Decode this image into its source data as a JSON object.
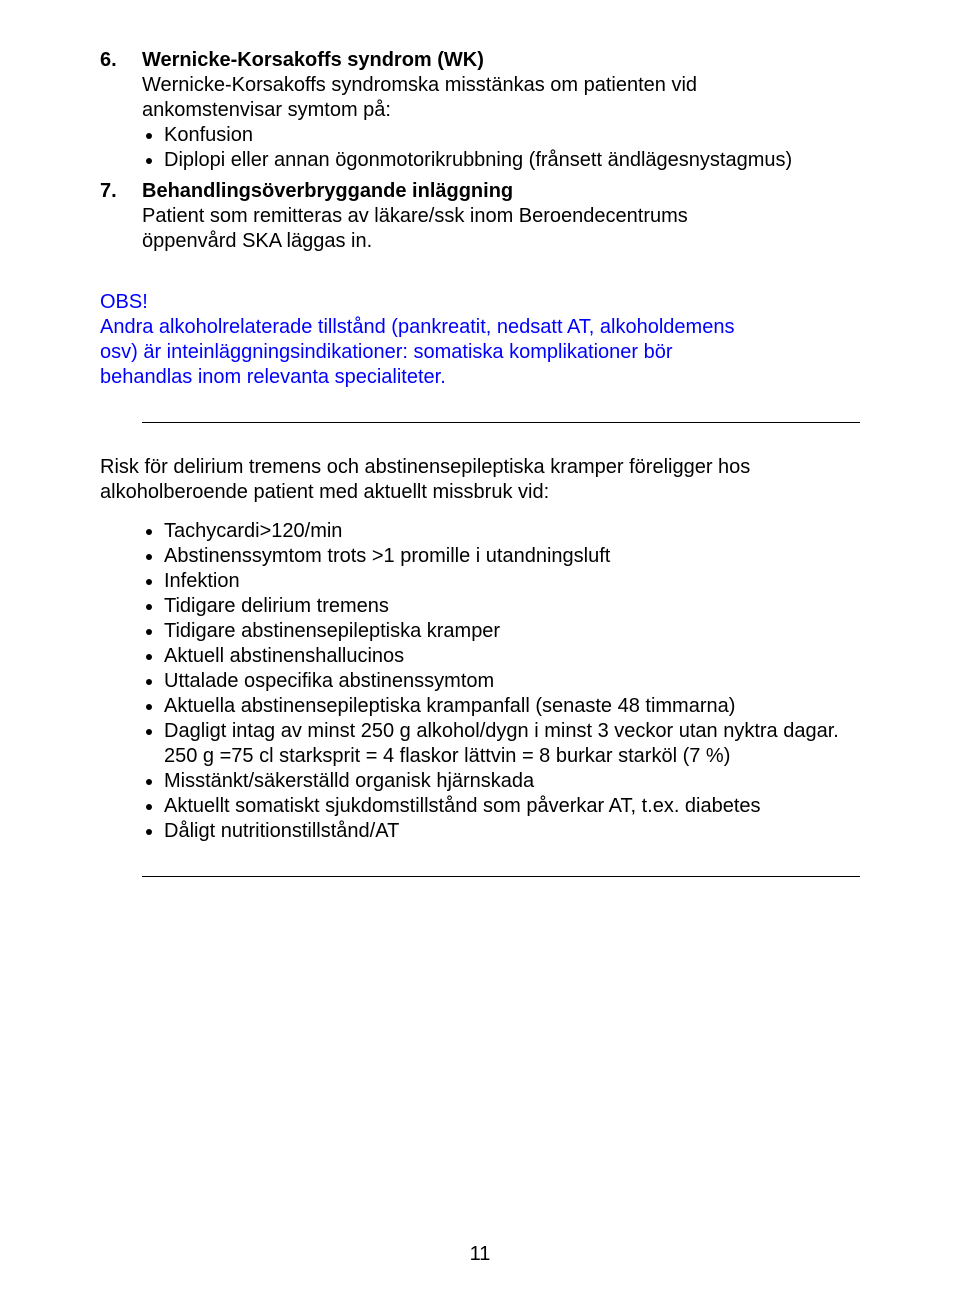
{
  "section6": {
    "num": "6.",
    "title": "Wernicke-Korsakoffs syndrom (WK)",
    "intro_line1": "Wernicke-Korsakoffs syndromska misstänkas om patienten vid",
    "intro_line2": "ankomstenvisar symtom på:",
    "bullets": [
      "Konfusion",
      "Diplopi eller annan ögonmotorikrubbning (frånsett ändlägesnystagmus)"
    ]
  },
  "section7": {
    "num": "7.",
    "title": "Behandlingsöverbryggande inläggning",
    "body_line1": "Patient som remitteras av läkare/ssk inom Beroendecentrums",
    "body_line2": "öppenvård SKA läggas in."
  },
  "obs": {
    "heading": "OBS!",
    "line1": "Andra alkoholrelaterade tillstånd (pankreatit, nedsatt AT, alkoholdemens",
    "line2": "osv) är inteinläggningsindikationer: somatiska komplikationer bör",
    "line3": "behandlas inom relevanta specialiteter."
  },
  "risk": {
    "intro_line1": "Risk för delirium tremens och abstinensepileptiska kramper föreligger hos",
    "intro_line2": "alkoholberoende patient med aktuellt missbruk vid:",
    "bullets": [
      "Tachycardi>120/min",
      "Abstinenssymtom trots >1 promille i utandningsluft",
      "Infektion",
      "Tidigare delirium tremens",
      "Tidigare abstinensepileptiska kramper",
      "Aktuell abstinenshallucinos",
      "Uttalade ospecifika abstinenssymtom",
      "Aktuella abstinensepileptiska krampanfall (senaste 48 timmarna)",
      "Dagligt intag av minst 250 g alkohol/dygn i minst 3 veckor utan nyktra dagar. 250 g =75 cl starksprit = 4 flaskor lättvin = 8 burkar starköl (7 %)",
      "Misstänkt/säkerställd organisk hjärnskada",
      "Aktuellt somatiskt sjukdomstillstånd som påverkar AT, t.ex. diabetes",
      "Dåligt nutritionstillstånd/AT"
    ]
  },
  "page_number": "11"
}
